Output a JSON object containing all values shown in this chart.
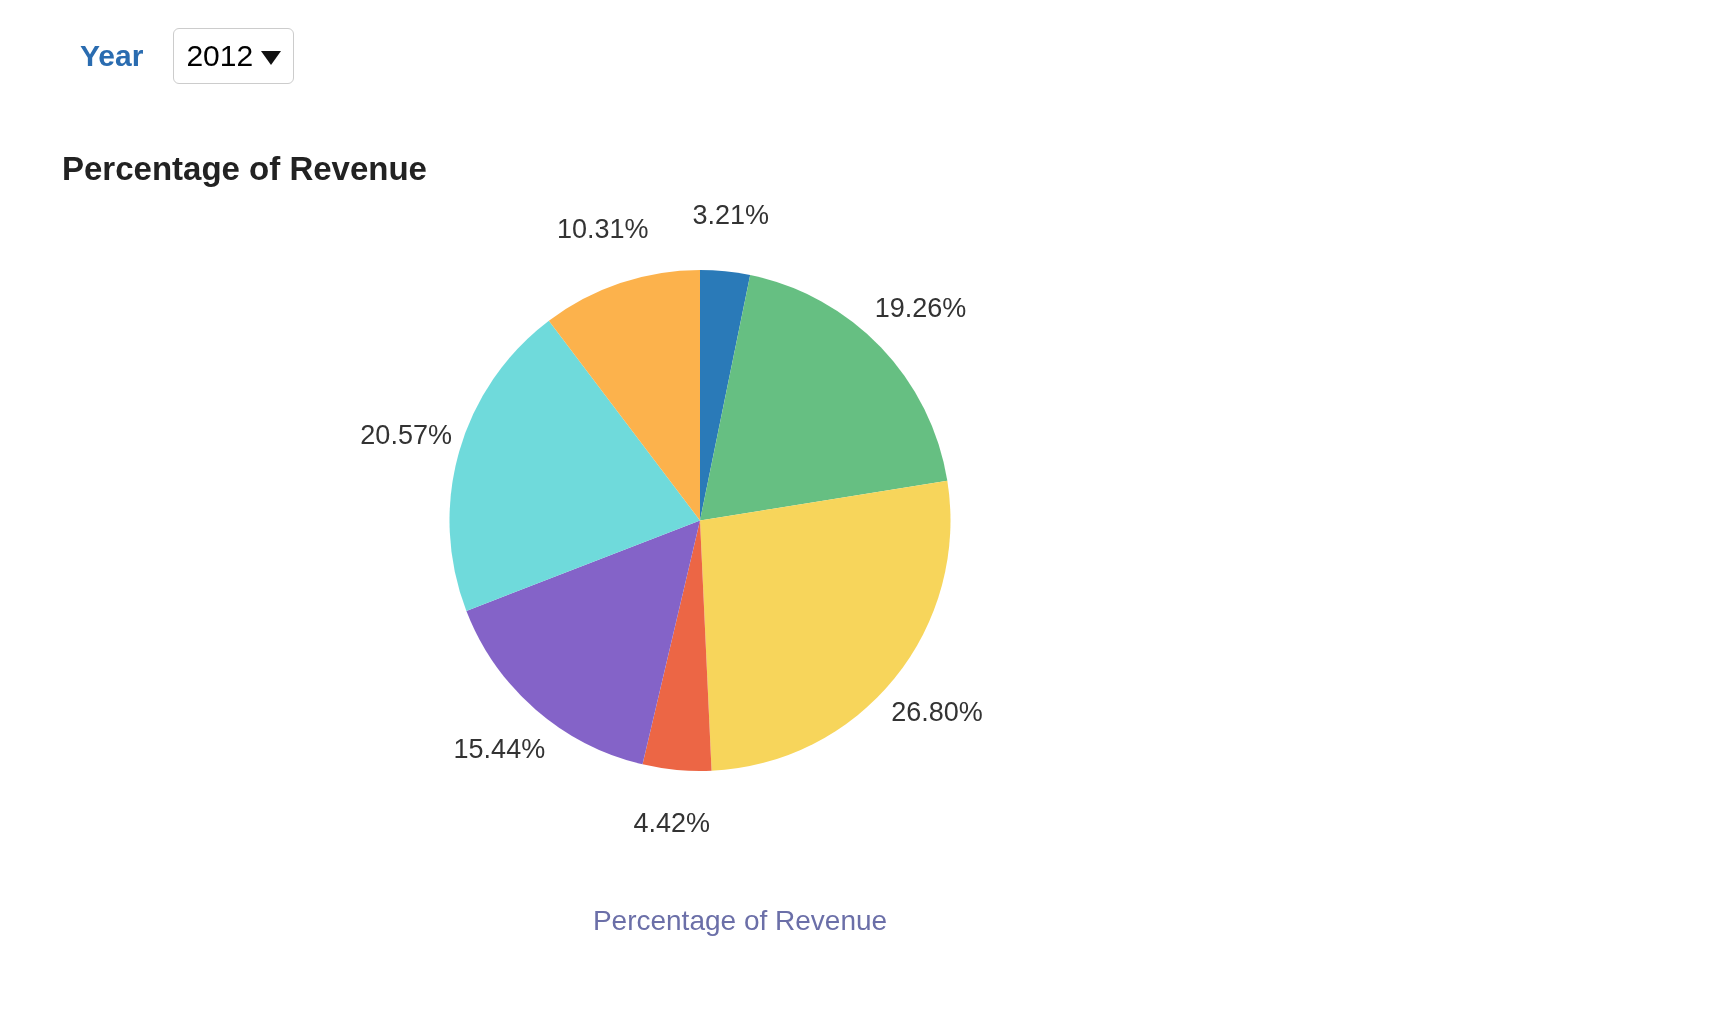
{
  "chart_data": {
    "type": "pie",
    "title": "Percentage of Revenue",
    "xlabel": "Percentage of Revenue",
    "annotations": [
      "Year",
      "2012"
    ],
    "categories": [
      null,
      null,
      null,
      null,
      null,
      null,
      null
    ],
    "values": [
      3.21,
      19.26,
      26.8,
      4.42,
      15.44,
      20.57,
      10.31
    ],
    "value_labels": [
      "3.21%",
      "19.26%",
      "26.80%",
      "4.42%",
      "15.44%",
      "20.57%",
      "10.31%"
    ],
    "colors": [
      "#2a7ab8",
      "#66bf82",
      "#f7d55b",
      "#ec6645",
      "#8463c8",
      "#6fdadb",
      "#fcb24c"
    ],
    "legend": false
  }
}
